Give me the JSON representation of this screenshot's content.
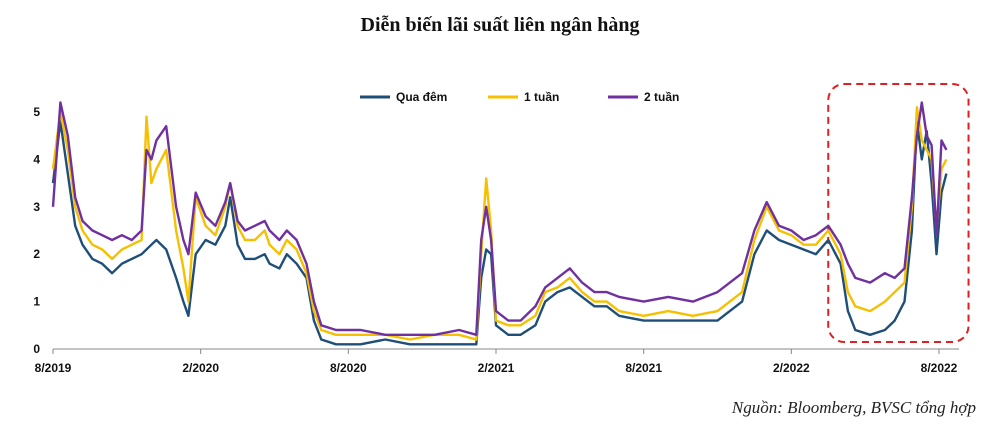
{
  "chart_data": {
    "type": "line",
    "title": "Diễn biến lãi suất liên ngân hàng",
    "source": "Nguồn: Bloomberg, BVSC tổng hợp",
    "xlabel": "",
    "ylabel": "",
    "ylim": [
      0,
      5
    ],
    "yticks": [
      "0",
      "1",
      "2",
      "3",
      "4",
      "5"
    ],
    "xticks": [
      "8/2019",
      "2/2020",
      "8/2020",
      "2/2021",
      "8/2021",
      "2/2022",
      "8/2022"
    ],
    "x_range_months": [
      0,
      36
    ],
    "legend_position": "top-center",
    "grid": false,
    "highlight": {
      "type": "dashed-box",
      "x_from_month": 31.5,
      "x_to_month": 37.2,
      "color": "#e02020"
    },
    "series": [
      {
        "name": "Qua đêm",
        "color": "#1f4e79",
        "points": [
          [
            0,
            3.5
          ],
          [
            0.3,
            4.8
          ],
          [
            0.6,
            3.7
          ],
          [
            0.9,
            2.6
          ],
          [
            1.2,
            2.2
          ],
          [
            1.6,
            1.9
          ],
          [
            2.0,
            1.8
          ],
          [
            2.4,
            1.6
          ],
          [
            2.8,
            1.8
          ],
          [
            3.2,
            1.9
          ],
          [
            3.6,
            2.0
          ],
          [
            4.0,
            2.2
          ],
          [
            4.2,
            2.3
          ],
          [
            4.6,
            2.1
          ],
          [
            5.0,
            1.5
          ],
          [
            5.3,
            1.0
          ],
          [
            5.5,
            0.7
          ],
          [
            5.8,
            2.0
          ],
          [
            6.2,
            2.3
          ],
          [
            6.6,
            2.2
          ],
          [
            7.0,
            2.6
          ],
          [
            7.2,
            3.2
          ],
          [
            7.5,
            2.2
          ],
          [
            7.8,
            1.9
          ],
          [
            8.2,
            1.9
          ],
          [
            8.6,
            2.0
          ],
          [
            8.8,
            1.8
          ],
          [
            9.2,
            1.7
          ],
          [
            9.5,
            2.0
          ],
          [
            9.9,
            1.8
          ],
          [
            10.3,
            1.5
          ],
          [
            10.6,
            0.6
          ],
          [
            10.9,
            0.2
          ],
          [
            11.5,
            0.1
          ],
          [
            12.5,
            0.1
          ],
          [
            13.5,
            0.2
          ],
          [
            14.5,
            0.1
          ],
          [
            15.5,
            0.1
          ],
          [
            16.5,
            0.1
          ],
          [
            17.2,
            0.1
          ],
          [
            17.4,
            1.5
          ],
          [
            17.6,
            2.1
          ],
          [
            17.8,
            2.0
          ],
          [
            18.0,
            0.5
          ],
          [
            18.5,
            0.3
          ],
          [
            19.0,
            0.3
          ],
          [
            19.6,
            0.5
          ],
          [
            20.0,
            1.0
          ],
          [
            20.5,
            1.2
          ],
          [
            21.0,
            1.3
          ],
          [
            21.5,
            1.1
          ],
          [
            22.0,
            0.9
          ],
          [
            22.5,
            0.9
          ],
          [
            23.0,
            0.7
          ],
          [
            24.0,
            0.6
          ],
          [
            25.0,
            0.6
          ],
          [
            26.0,
            0.6
          ],
          [
            27.0,
            0.6
          ],
          [
            28.0,
            1.0
          ],
          [
            28.5,
            2.0
          ],
          [
            29.0,
            2.5
          ],
          [
            29.5,
            2.3
          ],
          [
            30.0,
            2.2
          ],
          [
            30.5,
            2.1
          ],
          [
            31.0,
            2.0
          ],
          [
            31.5,
            2.3
          ],
          [
            32.0,
            1.8
          ],
          [
            32.3,
            0.8
          ],
          [
            32.6,
            0.4
          ],
          [
            33.2,
            0.3
          ],
          [
            33.8,
            0.4
          ],
          [
            34.2,
            0.6
          ],
          [
            34.6,
            1.0
          ],
          [
            34.9,
            2.5
          ],
          [
            35.1,
            4.8
          ],
          [
            35.3,
            4.0
          ],
          [
            35.5,
            4.6
          ],
          [
            35.7,
            3.5
          ],
          [
            35.9,
            2.0
          ],
          [
            36.1,
            3.3
          ],
          [
            36.3,
            3.7
          ]
        ]
      },
      {
        "name": "1 tuần",
        "color": "#f5c000",
        "points": [
          [
            0,
            3.8
          ],
          [
            0.3,
            5.0
          ],
          [
            0.6,
            4.2
          ],
          [
            0.9,
            3.0
          ],
          [
            1.2,
            2.5
          ],
          [
            1.6,
            2.2
          ],
          [
            2.0,
            2.1
          ],
          [
            2.4,
            1.9
          ],
          [
            2.8,
            2.1
          ],
          [
            3.2,
            2.2
          ],
          [
            3.6,
            2.3
          ],
          [
            3.8,
            4.9
          ],
          [
            4.0,
            3.5
          ],
          [
            4.2,
            3.8
          ],
          [
            4.6,
            4.2
          ],
          [
            5.0,
            2.5
          ],
          [
            5.3,
            1.7
          ],
          [
            5.5,
            1.0
          ],
          [
            5.8,
            3.2
          ],
          [
            6.2,
            2.6
          ],
          [
            6.6,
            2.4
          ],
          [
            7.0,
            3.0
          ],
          [
            7.2,
            3.5
          ],
          [
            7.5,
            2.6
          ],
          [
            7.8,
            2.3
          ],
          [
            8.2,
            2.3
          ],
          [
            8.6,
            2.5
          ],
          [
            8.8,
            2.2
          ],
          [
            9.2,
            2.0
          ],
          [
            9.5,
            2.3
          ],
          [
            9.9,
            2.1
          ],
          [
            10.3,
            1.6
          ],
          [
            10.6,
            0.8
          ],
          [
            10.9,
            0.4
          ],
          [
            11.5,
            0.3
          ],
          [
            12.5,
            0.3
          ],
          [
            13.5,
            0.3
          ],
          [
            14.5,
            0.2
          ],
          [
            15.5,
            0.3
          ],
          [
            16.5,
            0.3
          ],
          [
            17.2,
            0.2
          ],
          [
            17.4,
            2.0
          ],
          [
            17.6,
            3.6
          ],
          [
            17.8,
            2.5
          ],
          [
            18.0,
            0.6
          ],
          [
            18.5,
            0.5
          ],
          [
            19.0,
            0.5
          ],
          [
            19.6,
            0.7
          ],
          [
            20.0,
            1.2
          ],
          [
            20.5,
            1.3
          ],
          [
            21.0,
            1.5
          ],
          [
            21.5,
            1.2
          ],
          [
            22.0,
            1.0
          ],
          [
            22.5,
            1.0
          ],
          [
            23.0,
            0.8
          ],
          [
            24.0,
            0.7
          ],
          [
            25.0,
            0.8
          ],
          [
            26.0,
            0.7
          ],
          [
            27.0,
            0.8
          ],
          [
            28.0,
            1.2
          ],
          [
            28.5,
            2.3
          ],
          [
            29.0,
            3.0
          ],
          [
            29.5,
            2.5
          ],
          [
            30.0,
            2.4
          ],
          [
            30.5,
            2.2
          ],
          [
            31.0,
            2.2
          ],
          [
            31.5,
            2.5
          ],
          [
            32.0,
            2.0
          ],
          [
            32.3,
            1.2
          ],
          [
            32.6,
            0.9
          ],
          [
            33.2,
            0.8
          ],
          [
            33.8,
            1.0
          ],
          [
            34.2,
            1.2
          ],
          [
            34.6,
            1.4
          ],
          [
            34.9,
            3.0
          ],
          [
            35.1,
            5.1
          ],
          [
            35.3,
            4.4
          ],
          [
            35.5,
            4.2
          ],
          [
            35.7,
            4.0
          ],
          [
            35.9,
            2.5
          ],
          [
            36.1,
            3.8
          ],
          [
            36.3,
            4.0
          ]
        ]
      },
      {
        "name": "2 tuần",
        "color": "#7030a0",
        "points": [
          [
            0,
            3.0
          ],
          [
            0.3,
            5.2
          ],
          [
            0.6,
            4.5
          ],
          [
            0.9,
            3.2
          ],
          [
            1.2,
            2.7
          ],
          [
            1.6,
            2.5
          ],
          [
            2.0,
            2.4
          ],
          [
            2.4,
            2.3
          ],
          [
            2.8,
            2.4
          ],
          [
            3.2,
            2.3
          ],
          [
            3.6,
            2.5
          ],
          [
            3.8,
            4.2
          ],
          [
            4.0,
            4.0
          ],
          [
            4.2,
            4.4
          ],
          [
            4.6,
            4.7
          ],
          [
            5.0,
            3.0
          ],
          [
            5.3,
            2.3
          ],
          [
            5.5,
            2.0
          ],
          [
            5.8,
            3.3
          ],
          [
            6.2,
            2.8
          ],
          [
            6.6,
            2.6
          ],
          [
            7.0,
            3.1
          ],
          [
            7.2,
            3.5
          ],
          [
            7.5,
            2.7
          ],
          [
            7.8,
            2.5
          ],
          [
            8.2,
            2.6
          ],
          [
            8.6,
            2.7
          ],
          [
            8.8,
            2.5
          ],
          [
            9.2,
            2.3
          ],
          [
            9.5,
            2.5
          ],
          [
            9.9,
            2.3
          ],
          [
            10.3,
            1.8
          ],
          [
            10.6,
            1.0
          ],
          [
            10.9,
            0.5
          ],
          [
            11.5,
            0.4
          ],
          [
            12.5,
            0.4
          ],
          [
            13.5,
            0.3
          ],
          [
            14.5,
            0.3
          ],
          [
            15.5,
            0.3
          ],
          [
            16.5,
            0.4
          ],
          [
            17.2,
            0.3
          ],
          [
            17.4,
            2.3
          ],
          [
            17.6,
            3.0
          ],
          [
            17.8,
            2.3
          ],
          [
            18.0,
            0.8
          ],
          [
            18.5,
            0.6
          ],
          [
            19.0,
            0.6
          ],
          [
            19.6,
            0.9
          ],
          [
            20.0,
            1.3
          ],
          [
            20.5,
            1.5
          ],
          [
            21.0,
            1.7
          ],
          [
            21.5,
            1.4
          ],
          [
            22.0,
            1.2
          ],
          [
            22.5,
            1.2
          ],
          [
            23.0,
            1.1
          ],
          [
            24.0,
            1.0
          ],
          [
            25.0,
            1.1
          ],
          [
            26.0,
            1.0
          ],
          [
            27.0,
            1.2
          ],
          [
            28.0,
            1.6
          ],
          [
            28.5,
            2.5
          ],
          [
            29.0,
            3.1
          ],
          [
            29.5,
            2.6
          ],
          [
            30.0,
            2.5
          ],
          [
            30.5,
            2.3
          ],
          [
            31.0,
            2.4
          ],
          [
            31.5,
            2.6
          ],
          [
            32.0,
            2.2
          ],
          [
            32.3,
            1.8
          ],
          [
            32.6,
            1.5
          ],
          [
            33.2,
            1.4
          ],
          [
            33.8,
            1.6
          ],
          [
            34.2,
            1.5
          ],
          [
            34.6,
            1.7
          ],
          [
            34.9,
            3.2
          ],
          [
            35.1,
            4.5
          ],
          [
            35.3,
            5.2
          ],
          [
            35.5,
            4.5
          ],
          [
            35.7,
            4.3
          ],
          [
            35.9,
            2.4
          ],
          [
            36.1,
            4.4
          ],
          [
            36.3,
            4.2
          ]
        ]
      }
    ]
  }
}
